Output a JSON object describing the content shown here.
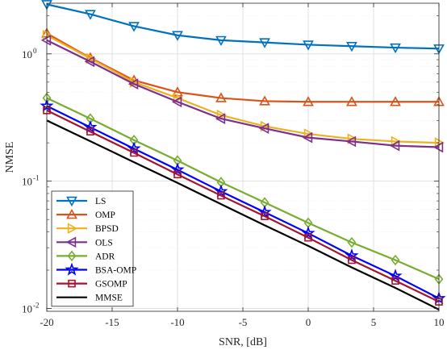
{
  "chart_data": {
    "type": "line",
    "xlabel": "SNR, [dB]",
    "ylabel": "NMSE",
    "xlim": [
      -20,
      10
    ],
    "ylim": [
      0.0095,
      2.5
    ],
    "yscale": "log",
    "grid": true,
    "legend_position": "bottom-left",
    "x": [
      -20,
      -16.67,
      -13.33,
      -10,
      -6.67,
      -3.33,
      0,
      3.33,
      6.67,
      10
    ],
    "xticks": [
      -20,
      -15,
      -10,
      -5,
      0,
      5,
      10
    ],
    "xtick_labels": [
      "-20",
      "-15",
      "-10",
      "-5",
      "0",
      "5",
      "10"
    ],
    "yticks": [
      0.01,
      0.1,
      1
    ],
    "ytick_labels": [
      {
        "base": "10",
        "exp": "-2"
      },
      {
        "base": "10",
        "exp": "-1"
      },
      {
        "base": "10",
        "exp": "0"
      }
    ],
    "series": [
      {
        "name": "LS",
        "color": "#0072BD",
        "marker": "triangle-down",
        "values": [
          2.45,
          2.05,
          1.65,
          1.4,
          1.28,
          1.23,
          1.18,
          1.15,
          1.12,
          1.1
        ]
      },
      {
        "name": "OMP",
        "color": "#D95319",
        "marker": "triangle-up",
        "values": [
          1.45,
          0.93,
          0.62,
          0.5,
          0.45,
          0.425,
          0.42,
          0.42,
          0.42,
          0.42
        ]
      },
      {
        "name": "BPSD",
        "color": "#EDB120",
        "marker": "triangle-right",
        "values": [
          1.4,
          0.92,
          0.6,
          0.45,
          0.33,
          0.27,
          0.235,
          0.215,
          0.205,
          0.2
        ]
      },
      {
        "name": "OLS",
        "color": "#7E2F8E",
        "marker": "triangle-left",
        "values": [
          1.28,
          0.87,
          0.58,
          0.42,
          0.31,
          0.26,
          0.22,
          0.205,
          0.19,
          0.185
        ]
      },
      {
        "name": "ADR",
        "color": "#77AC30",
        "marker": "diamond",
        "values": [
          0.45,
          0.31,
          0.21,
          0.145,
          0.098,
          0.068,
          0.047,
          0.033,
          0.024,
          0.017
        ]
      },
      {
        "name": "BSA-OMP",
        "color": "#0000FF",
        "marker": "pentagram",
        "values": [
          0.39,
          0.265,
          0.18,
          0.123,
          0.083,
          0.057,
          0.039,
          0.026,
          0.018,
          0.012
        ]
      },
      {
        "name": "GSOMP",
        "color": "#A2142F",
        "marker": "square",
        "values": [
          0.36,
          0.245,
          0.167,
          0.113,
          0.077,
          0.053,
          0.036,
          0.024,
          0.0165,
          0.0113
        ]
      },
      {
        "name": "MMSE",
        "color": "#000000",
        "marker": "none",
        "values": [
          0.3,
          0.206,
          0.141,
          0.097,
          0.066,
          0.045,
          0.031,
          0.021,
          0.0145,
          0.0098
        ]
      }
    ]
  }
}
